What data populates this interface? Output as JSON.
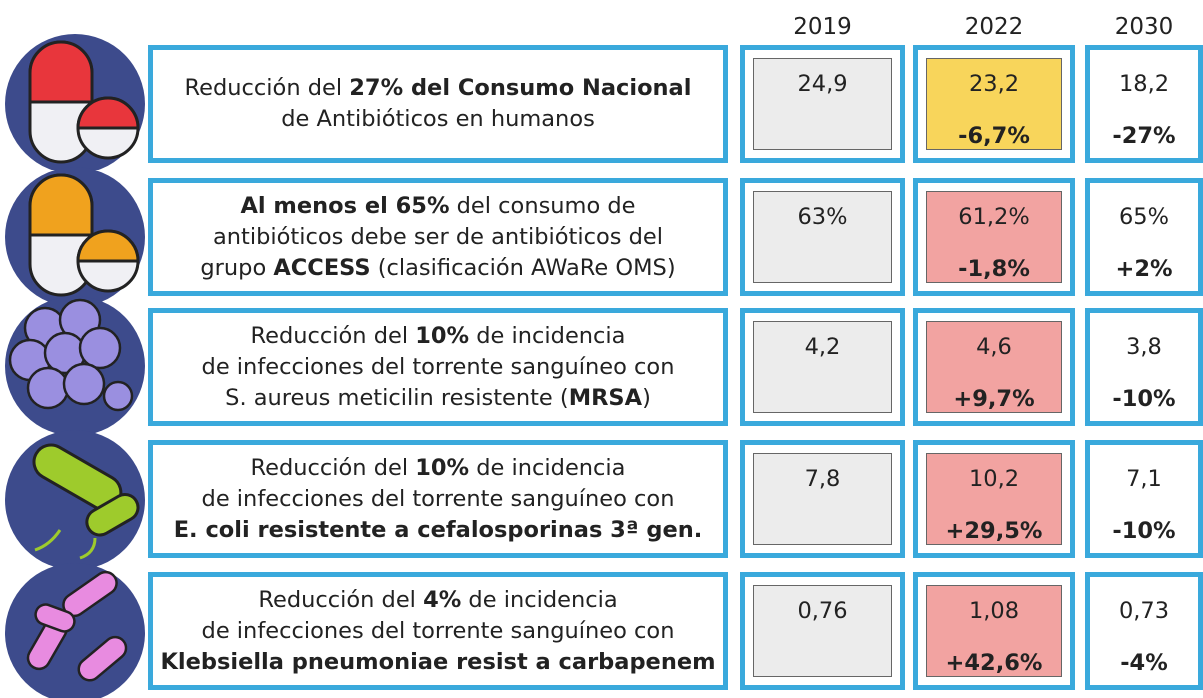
{
  "header": {
    "years": [
      "2019",
      "2022",
      "2030"
    ]
  },
  "rows": [
    {
      "description": [
        [
          {
            "text": "Reducción del "
          },
          {
            "text": "27% del Consumo Nacional",
            "bold": true
          }
        ],
        [
          {
            "text": "de Antibióticos en humanos"
          }
        ]
      ],
      "v2019": "24,9",
      "v2022": "23,2",
      "change2022": "-6,7%",
      "v2030": "18,2",
      "change2030": "-27%",
      "cell_color": "#f8d55b"
    },
    {
      "description": [
        [
          {
            "text": "Al menos el 65%",
            "bold": true
          },
          {
            "text": " del consumo de"
          }
        ],
        [
          {
            "text": "antibióticos debe ser de antibióticos del"
          }
        ],
        [
          {
            "text": "grupo "
          },
          {
            "text": "ACCESS",
            "bold": true
          },
          {
            "text": " (clasificación AWaRe OMS)"
          }
        ]
      ],
      "v2019": "63%",
      "v2022": "61,2%",
      "change2022": "-1,8%",
      "v2030": "65%",
      "change2030": "+2%",
      "cell_color": "#f2a3a1"
    },
    {
      "description": [
        [
          {
            "text": "Reducción del "
          },
          {
            "text": "10%",
            "bold": true
          },
          {
            "text": " de incidencia"
          }
        ],
        [
          {
            "text": "de infecciones del torrente sanguíneo con"
          }
        ],
        [
          {
            "text": "S. aureus meticilin resistente ("
          },
          {
            "text": "MRSA",
            "bold": true
          },
          {
            "text": ")"
          }
        ]
      ],
      "v2019": "4,2",
      "v2022": "4,6",
      "change2022": "+9,7%",
      "v2030": "3,8",
      "change2030": "-10%",
      "cell_color": "#f2a3a1"
    },
    {
      "description": [
        [
          {
            "text": "Reducción del "
          },
          {
            "text": "10%",
            "bold": true
          },
          {
            "text": " de incidencia"
          }
        ],
        [
          {
            "text": "de infecciones del torrente sanguíneo con"
          }
        ],
        [
          {
            "text": "E. coli resistente a cefalosporinas 3ª gen.",
            "bold": true
          }
        ]
      ],
      "v2019": "7,8",
      "v2022": "10,2",
      "change2022": "+29,5%",
      "v2030": "7,1",
      "change2030": "-10%",
      "cell_color": "#f2a3a1"
    },
    {
      "description": [
        [
          {
            "text": "Reducción del "
          },
          {
            "text": "4%",
            "bold": true
          },
          {
            "text": " de incidencia"
          }
        ],
        [
          {
            "text": "de infecciones del torrente sanguíneo con"
          }
        ],
        [
          {
            "text": "Klebsiella pneumoniae resist a carbapenem",
            "bold": true
          }
        ]
      ],
      "v2019": "0,76",
      "v2022": "1,08",
      "change2022": "+42,6%",
      "v2030": "0,73",
      "change2030": "-4%",
      "cell_color": "#f2a3a1"
    }
  ]
}
